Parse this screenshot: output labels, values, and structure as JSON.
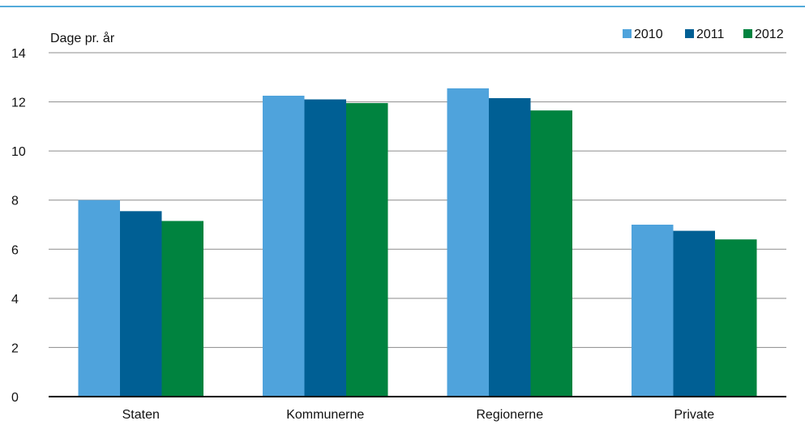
{
  "chart_data": {
    "type": "bar",
    "ylabel": "Dage pr. år",
    "xlabel": "",
    "categories": [
      "Staten",
      "Kommunerne",
      "Regionerne",
      "Private"
    ],
    "series": [
      {
        "name": "2010",
        "color": "#4fa3dc",
        "values": [
          8.0,
          12.25,
          12.55,
          7.0
        ]
      },
      {
        "name": "2011",
        "color": "#005f94",
        "values": [
          7.55,
          12.1,
          12.15,
          6.75
        ]
      },
      {
        "name": "2012",
        "color": "#00833f",
        "values": [
          7.15,
          11.95,
          11.65,
          6.4
        ]
      }
    ],
    "ylim": [
      0,
      14
    ],
    "yticks": [
      0,
      2,
      4,
      6,
      8,
      10,
      12,
      14
    ],
    "grid": true,
    "legend_position": "top-right"
  },
  "colors": {
    "top_rule": "#1a8fce",
    "gridline": "#8c8c8c",
    "axis": "#000000"
  }
}
